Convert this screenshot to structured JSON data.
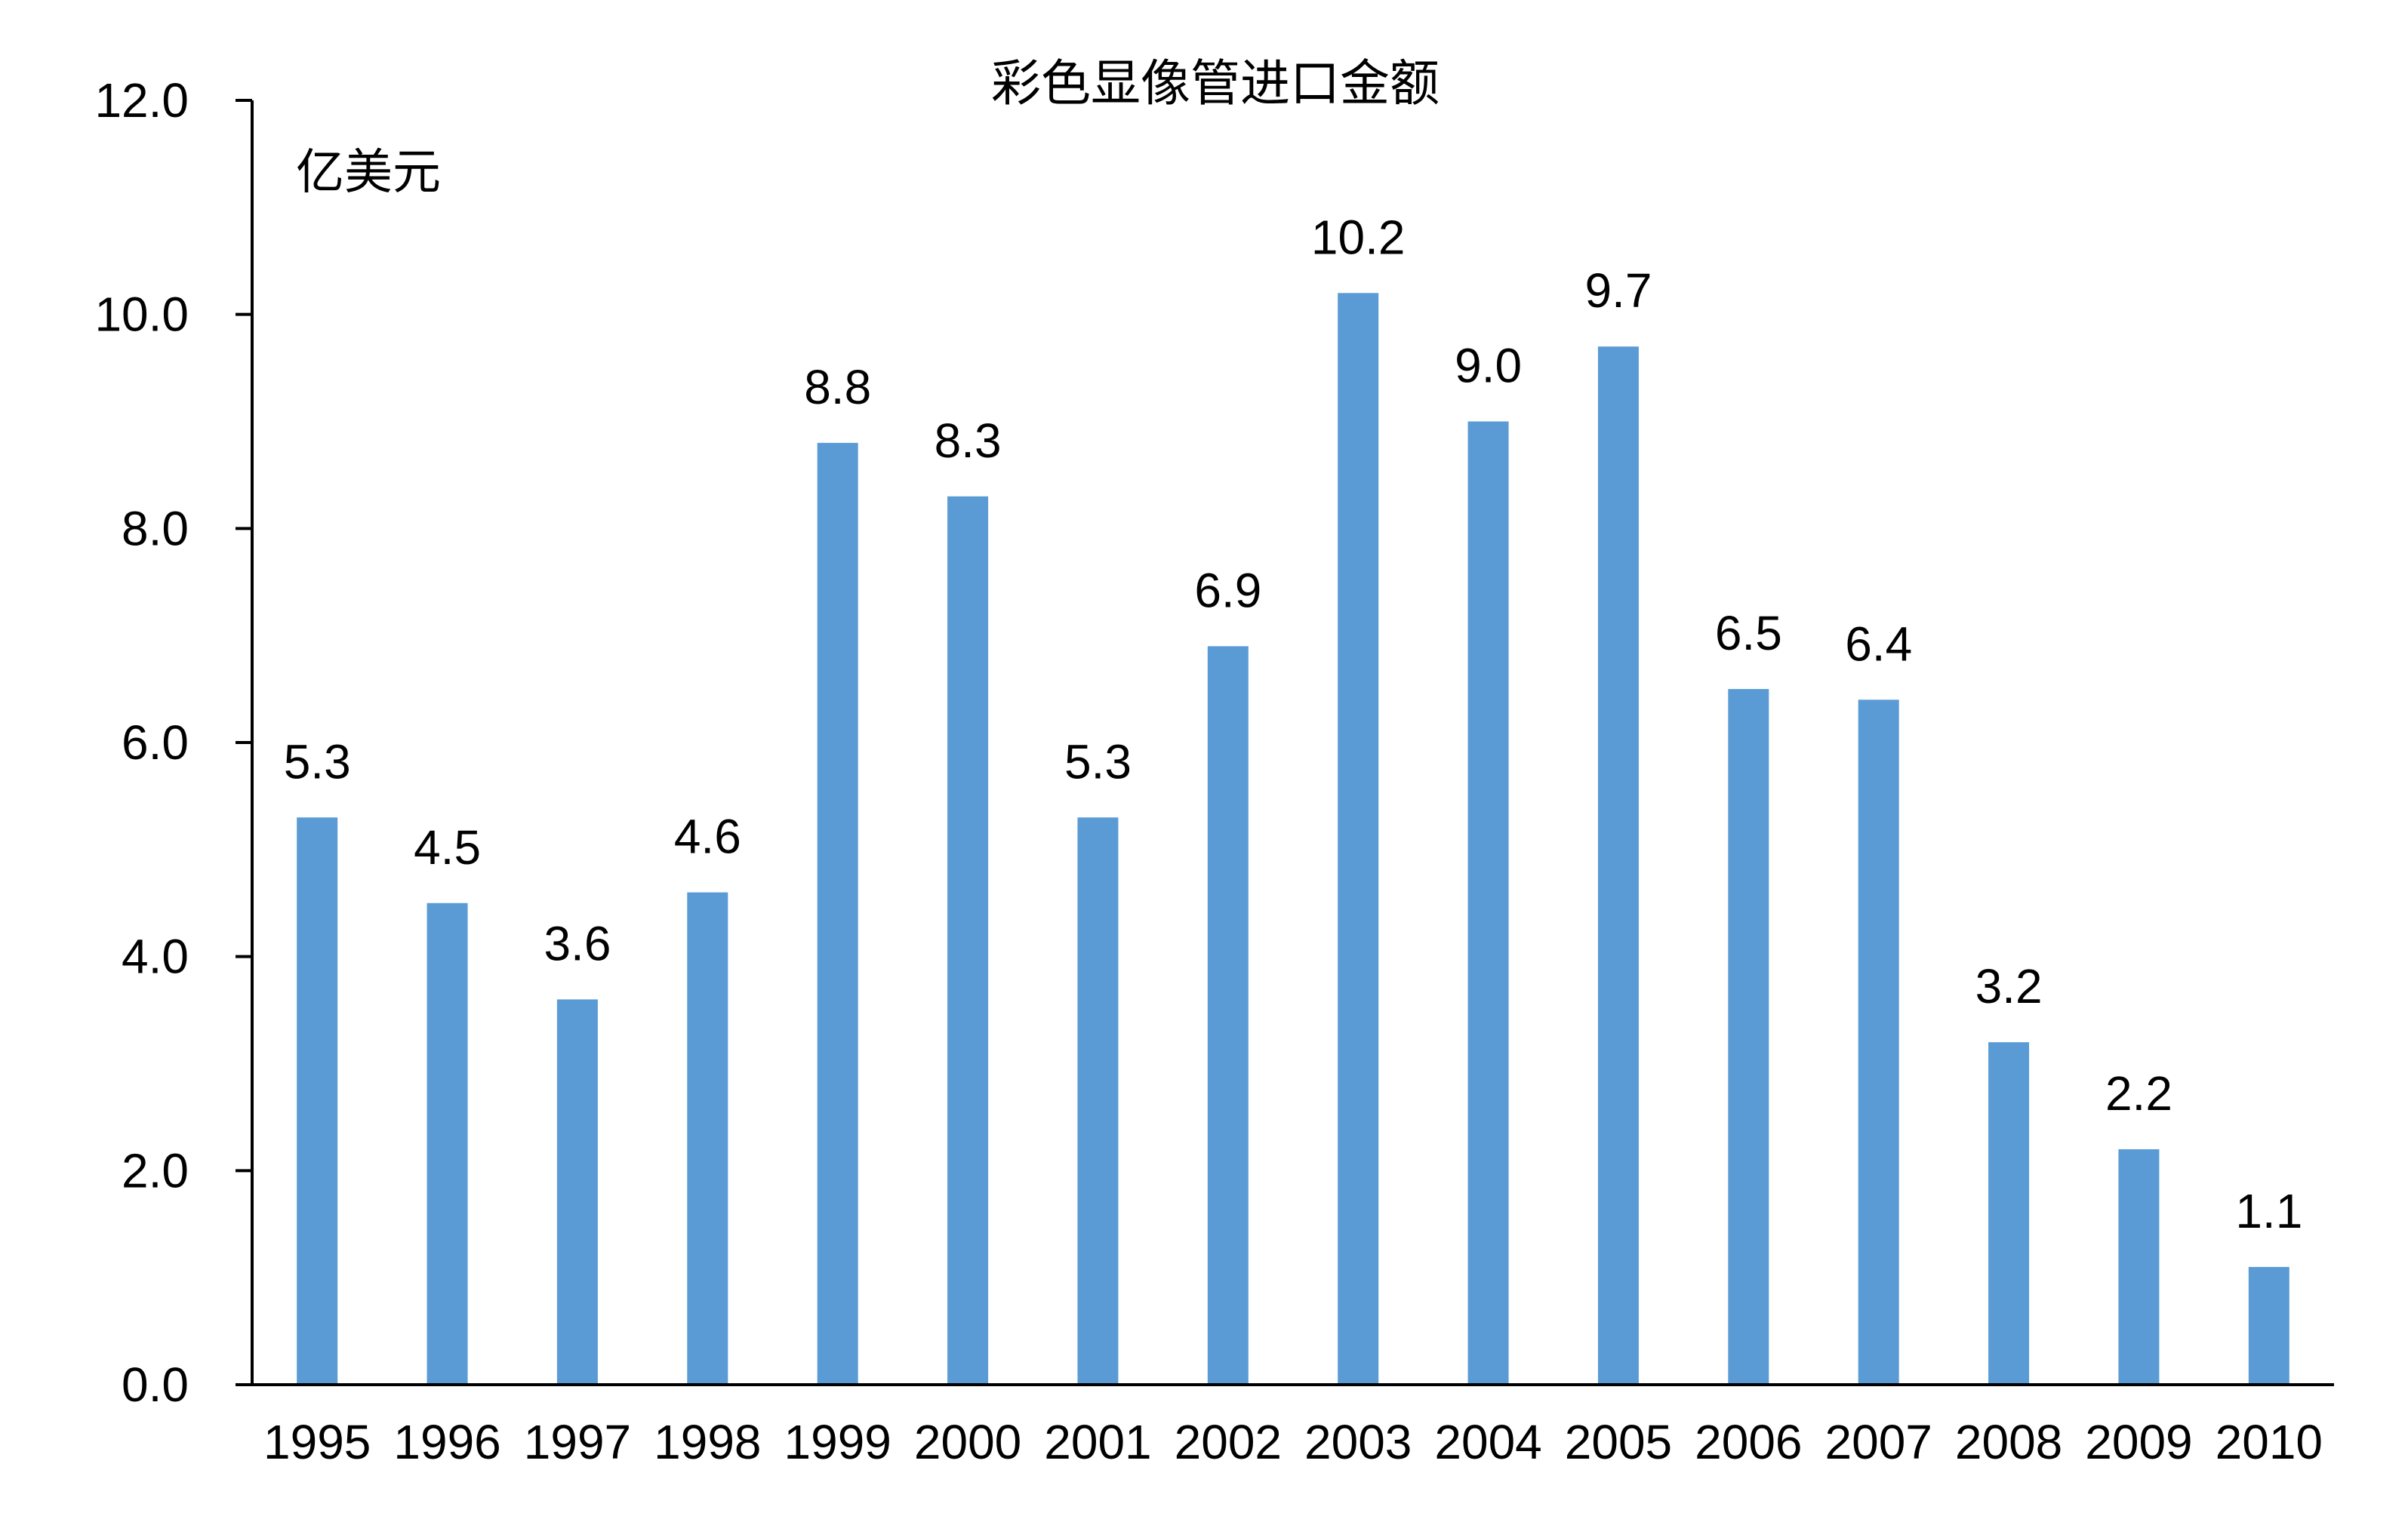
{
  "chart_data": {
    "type": "bar",
    "title": "彩色显像管进口金额",
    "ylabel": "亿美元",
    "xlabel": "",
    "categories": [
      "1995",
      "1996",
      "1997",
      "1998",
      "1999",
      "2000",
      "2001",
      "2002",
      "2003",
      "2004",
      "2005",
      "2006",
      "2007",
      "2008",
      "2009",
      "2010"
    ],
    "values": [
      5.3,
      4.5,
      3.6,
      4.6,
      8.8,
      8.3,
      5.3,
      6.9,
      10.2,
      9.0,
      9.7,
      6.5,
      6.4,
      3.2,
      2.2,
      1.1
    ],
    "value_labels": [
      "5.3",
      "4.5",
      "3.6",
      "4.6",
      "8.8",
      "8.3",
      "5.3",
      "6.9",
      "10.2",
      "9.0",
      "9.7",
      "6.5",
      "6.4",
      "3.2",
      "2.2",
      "1.1"
    ],
    "ylim": [
      0,
      12
    ],
    "yticks": [
      "0.0",
      "2.0",
      "4.0",
      "6.0",
      "8.0",
      "10.0",
      "12.0"
    ],
    "grid": false,
    "legend": "none",
    "bar_color": "#5B9BD5",
    "axis_color": "#000000"
  }
}
